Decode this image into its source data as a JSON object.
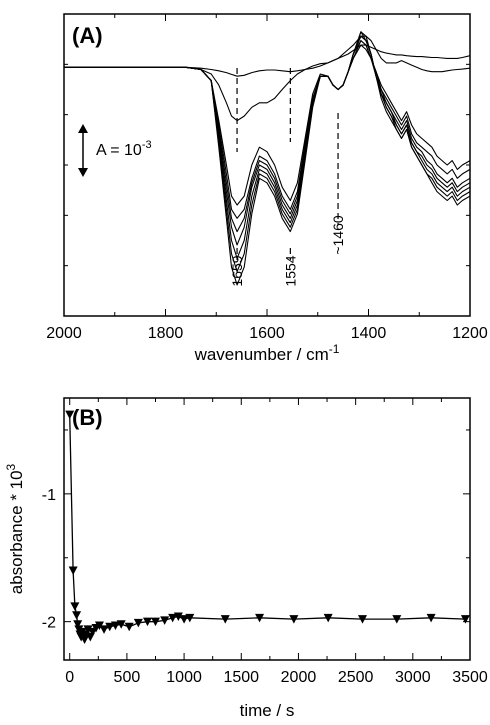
{
  "chart_data": [
    {
      "type": "line",
      "panel_label": "(A)",
      "xlabel": "wavenumber / cm",
      "xlabel_sup": "-1",
      "ylabel": "",
      "xlim": [
        2000,
        1200
      ],
      "ylim": [
        -0.0056,
        0.0012
      ],
      "x_reversed": true,
      "x_ticks": [
        2000,
        1800,
        1600,
        1400,
        1200
      ],
      "y_ticks_labeled": false,
      "scale_bar": {
        "label": "A = 10",
        "label_sup": "-3",
        "value": 0.001
      },
      "annotations": [
        {
          "text": "1659",
          "x": 1659,
          "style": "dashed-marker"
        },
        {
          "text": "1554",
          "x": 1554,
          "style": "dashed-marker"
        },
        {
          "text": "~1460",
          "x": 1460,
          "style": "dashed-marker"
        }
      ],
      "x": [
        2000,
        1950,
        1900,
        1850,
        1800,
        1760,
        1730,
        1710,
        1695,
        1680,
        1670,
        1659,
        1645,
        1630,
        1615,
        1600,
        1585,
        1570,
        1554,
        1540,
        1525,
        1510,
        1495,
        1480,
        1470,
        1460,
        1450,
        1440,
        1430,
        1415,
        1405,
        1395,
        1385,
        1375,
        1365,
        1355,
        1345,
        1335,
        1325,
        1315,
        1305,
        1295,
        1285,
        1275,
        1265,
        1255,
        1245,
        1235,
        1225,
        1215,
        1200
      ],
      "series": [
        {
          "values": [
            0,
            0,
            0,
            0,
            0,
            0,
            -2e-05,
            -5e-05,
            -8e-05,
            -0.00012,
            -0.00016,
            -0.0002,
            -0.00018,
            -0.00012,
            -8e-05,
            -6e-05,
            -6e-05,
            -8e-05,
            -0.0001,
            -8e-05,
            -5e-05,
            -2e-05,
            3e-05,
            0.0001,
            0.00015,
            0.0002,
            0.00025,
            0.0003,
            0.00038,
            0.0005,
            0.0005,
            0.00045,
            0.0004,
            0.00035,
            0.00032,
            0.0003,
            0.00028,
            0.00028,
            0.00026,
            0.00025,
            0.00024,
            0.00024,
            0.00023,
            0.00022,
            0.00022,
            0.00021,
            0.0002,
            0.0002,
            0.0002,
            0.00022,
            0.00026
          ]
        },
        {
          "values": [
            0,
            0,
            0,
            0,
            0,
            0,
            -5e-05,
            -0.00015,
            -0.0004,
            -0.0008,
            -0.0011,
            -0.0012,
            -0.0011,
            -0.0009,
            -0.0008,
            -0.0008,
            -0.0007,
            -0.0005,
            -0.0003,
            -0.00015,
            -5e-05,
            3e-05,
            8e-05,
            0.0001,
            0.00015,
            0.0002,
            0.0003,
            0.0004,
            0.0005,
            0.0007,
            0.0007,
            0.0006,
            0.0004,
            0.0002,
            0.0001,
            0.0001,
            0.0001,
            0.00015,
            0.0001,
            5e-05,
            0,
            -5e-05,
            -8e-05,
            -0.0001,
            -0.0001,
            -0.0001,
            -8e-05,
            -6e-05,
            -5e-05,
            -4e-05,
            -2e-05
          ]
        },
        {
          "values": [
            0,
            0,
            0,
            0,
            0,
            0,
            -5e-05,
            -0.0003,
            -0.0012,
            -0.0022,
            -0.0029,
            -0.0031,
            -0.0029,
            -0.0022,
            -0.0018,
            -0.0019,
            -0.0022,
            -0.0027,
            -0.003,
            -0.0026,
            -0.0016,
            -0.0006,
            -0.00015,
            -0.0002,
            -0.0004,
            -0.0005,
            -0.0004,
            -0.0001,
            0.0002,
            0.0005,
            0.0004,
            0.0002,
            -0.0001,
            -0.0004,
            -0.0006,
            -0.0008,
            -0.001,
            -0.0012,
            -0.001,
            -0.0013,
            -0.0015,
            -0.0016,
            -0.0017,
            -0.0018,
            -0.002,
            -0.0021,
            -0.0022,
            -0.0021,
            -0.0023,
            -0.0022,
            -0.0021
          ]
        },
        {
          "values": [
            0,
            0,
            0,
            0,
            0,
            0,
            -5e-05,
            -0.0003,
            -0.0013,
            -0.0024,
            -0.0032,
            -0.0034,
            -0.0032,
            -0.0025,
            -0.002,
            -0.0021,
            -0.0024,
            -0.0029,
            -0.0032,
            -0.0028,
            -0.0017,
            -0.0007,
            -0.0002,
            -0.0002,
            -0.0004,
            -0.0005,
            -0.0004,
            -0.0001,
            0.0002,
            0.0006,
            0.0005,
            0.0002,
            -0.0001,
            -0.0005,
            -0.0007,
            -0.0009,
            -0.0011,
            -0.0013,
            -0.0011,
            -0.0015,
            -0.0017,
            -0.0018,
            -0.0019,
            -0.002,
            -0.0022,
            -0.0023,
            -0.0024,
            -0.0023,
            -0.0025,
            -0.0024,
            -0.0023
          ]
        },
        {
          "values": [
            0,
            0,
            0,
            0,
            0,
            0,
            -5e-05,
            -0.0003,
            -0.0014,
            -0.0026,
            -0.0034,
            -0.0037,
            -0.0034,
            -0.0026,
            -0.0021,
            -0.0022,
            -0.0025,
            -0.003,
            -0.0033,
            -0.0029,
            -0.0018,
            -0.0007,
            -0.0002,
            -0.0002,
            -0.0004,
            -0.0005,
            -0.0004,
            -0.0001,
            0.0003,
            0.0006,
            0.0005,
            0.0002,
            -0.0002,
            -0.0005,
            -0.0008,
            -0.001,
            -0.0012,
            -0.0014,
            -0.0012,
            -0.0016,
            -0.0018,
            -0.0019,
            -0.0021,
            -0.0022,
            -0.0024,
            -0.0025,
            -0.0026,
            -0.0025,
            -0.0027,
            -0.0026,
            -0.0025
          ]
        },
        {
          "values": [
            0,
            0,
            0,
            0,
            0,
            0,
            -5e-05,
            -0.0003,
            -0.0015,
            -0.0028,
            -0.0036,
            -0.004,
            -0.0036,
            -0.0027,
            -0.0022,
            -0.0023,
            -0.0026,
            -0.0031,
            -0.0034,
            -0.003,
            -0.0019,
            -0.0008,
            -0.0002,
            -0.0002,
            -0.0004,
            -0.0005,
            -0.0004,
            -0.0001,
            0.0003,
            0.0007,
            0.0006,
            0.0003,
            -0.0002,
            -0.0006,
            -0.0008,
            -0.001,
            -0.0013,
            -0.0015,
            -0.0013,
            -0.0017,
            -0.0019,
            -0.002,
            -0.0022,
            -0.0023,
            -0.0025,
            -0.0026,
            -0.0027,
            -0.0026,
            -0.0028,
            -0.0027,
            -0.0026
          ]
        },
        {
          "values": [
            0,
            0,
            0,
            0,
            0,
            0,
            -5e-05,
            -0.0003,
            -0.0016,
            -0.003,
            -0.0039,
            -0.0043,
            -0.0039,
            -0.0029,
            -0.0023,
            -0.0024,
            -0.0027,
            -0.0032,
            -0.0035,
            -0.0031,
            -0.002,
            -0.0008,
            -0.0002,
            -0.0002,
            -0.0004,
            -0.0005,
            -0.0004,
            -0.0001,
            0.0003,
            0.0007,
            0.0006,
            0.0003,
            -0.0002,
            -0.0006,
            -0.0009,
            -0.0011,
            -0.0013,
            -0.0015,
            -0.0013,
            -0.0017,
            -0.0019,
            -0.0021,
            -0.0023,
            -0.0024,
            -0.0026,
            -0.0027,
            -0.0028,
            -0.0027,
            -0.0029,
            -0.0028,
            -0.0027
          ]
        },
        {
          "values": [
            0,
            0,
            0,
            0,
            0,
            0,
            -5e-05,
            -0.0003,
            -0.0017,
            -0.0032,
            -0.0042,
            -0.0046,
            -0.0042,
            -0.0031,
            -0.0024,
            -0.0025,
            -0.0028,
            -0.0033,
            -0.0036,
            -0.0032,
            -0.002,
            -0.0008,
            -0.0002,
            -0.0002,
            -0.0004,
            -0.0005,
            -0.0004,
            -0.0001,
            0.0003,
            0.0008,
            0.0006,
            0.0003,
            -0.0002,
            -0.0006,
            -0.0009,
            -0.0011,
            -0.0014,
            -0.0016,
            -0.0014,
            -0.0018,
            -0.002,
            -0.0022,
            -0.0024,
            -0.0025,
            -0.0027,
            -0.0028,
            -0.0029,
            -0.0028,
            -0.003,
            -0.0029,
            -0.0028
          ]
        },
        {
          "values": [
            0,
            0,
            0,
            0,
            0,
            0,
            -5e-05,
            -0.0003,
            -0.0018,
            -0.0034,
            -0.0045,
            -0.0049,
            -0.0045,
            -0.0033,
            -0.0025,
            -0.0026,
            -0.0029,
            -0.0034,
            -0.0037,
            -0.0033,
            -0.0021,
            -0.0009,
            -0.0002,
            -0.0002,
            -0.0004,
            -0.0005,
            -0.0004,
            -0.0001,
            0.0003,
            0.0008,
            0.0007,
            0.0003,
            -0.0002,
            -0.0007,
            -0.001,
            -0.0012,
            -0.0014,
            -0.0016,
            -0.0014,
            -0.0018,
            -0.002,
            -0.0022,
            -0.0024,
            -0.0026,
            -0.0028,
            -0.0029,
            -0.003,
            -0.0029,
            -0.0031,
            -0.003,
            -0.0029
          ]
        }
      ]
    },
    {
      "type": "scatter",
      "panel_label": "(B)",
      "xlabel": "time / s",
      "ylabel": "absorbance * 10",
      "ylabel_sup": "3",
      "xlim": [
        -50,
        3500
      ],
      "ylim": [
        -2.3,
        -0.25
      ],
      "x_ticks": [
        0,
        500,
        1000,
        1500,
        2000,
        2500,
        3000,
        3500
      ],
      "y_ticks": [
        -1,
        -2
      ],
      "marker": "down-triangle",
      "connect_points": true,
      "x": [
        0,
        30,
        45,
        60,
        70,
        80,
        90,
        100,
        110,
        120,
        130,
        140,
        160,
        180,
        200,
        230,
        260,
        300,
        350,
        400,
        450,
        520,
        600,
        680,
        750,
        830,
        900,
        950,
        1000,
        1050,
        1360,
        1660,
        1960,
        2260,
        2560,
        2860,
        3160,
        3460
      ],
      "y": [
        -0.38,
        -1.6,
        -1.88,
        -1.95,
        -2.02,
        -2.06,
        -2.1,
        -2.12,
        -2.08,
        -2.12,
        -2.14,
        -2.1,
        -2.06,
        -2.12,
        -2.08,
        -2.05,
        -2.03,
        -2.06,
        -2.04,
        -2.03,
        -2.02,
        -2.04,
        -2.01,
        -2.0,
        -2.0,
        -1.99,
        -1.97,
        -1.96,
        -1.98,
        -1.97,
        -1.98,
        -1.97,
        -1.98,
        -1.97,
        -1.98,
        -1.98,
        -1.97,
        -1.98
      ]
    }
  ]
}
